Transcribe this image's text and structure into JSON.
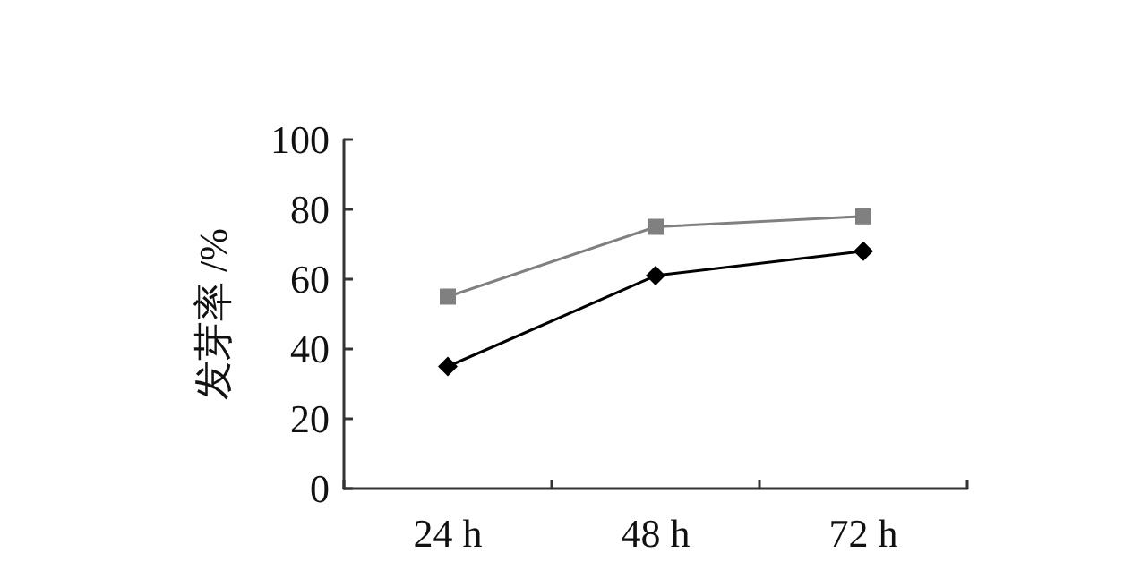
{
  "chart_data": {
    "type": "line",
    "ylabel": "发芽率 /%",
    "categories": [
      "24 h",
      "48 h",
      "72 h"
    ],
    "series": [
      {
        "color": "#808080",
        "marker": "square",
        "values": [
          55,
          75,
          78
        ]
      },
      {
        "color": "#000000",
        "marker": "diamond",
        "values": [
          35,
          61,
          68
        ]
      }
    ],
    "ylim": [
      0,
      100
    ],
    "yticks": [
      0,
      20,
      40,
      60,
      80,
      100
    ],
    "grid": false,
    "line_style": "solid"
  }
}
